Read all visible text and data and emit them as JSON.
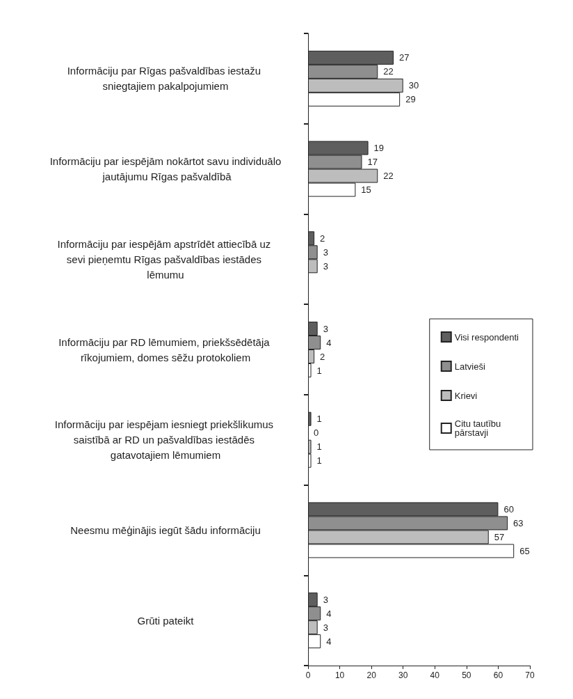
{
  "chart_data": {
    "type": "bar",
    "orientation": "horizontal",
    "categories": [
      "Informāciju par Rīgas pašvaldības iestažu sniegtajiem pakalpojumiem",
      "Informāciju par iespējām nokārtot savu individuālo jautājumu Rīgas pašvaldībā",
      "Informāciju par iespējām apstrīdēt attiecībā uz sevi pieņemtu Rīgas pašvaldības iestādes lēmumu",
      "Informāciju par RD lēmumiem, priekšsēdētāja rīkojumiem, domes sēžu protokoliem",
      "Informāciju par iespējam iesniegt priekšlikumus saistībā ar RD un pašvaldības iestādēs gatavotajiem lēmumiem",
      "Neesmu mēģinājis iegūt šādu informāciju",
      "Grūti pateikt"
    ],
    "series": [
      {
        "name": "Visi respondenti",
        "color": "#5e5e5e",
        "values": [
          27,
          19,
          2,
          3,
          1,
          60,
          3
        ]
      },
      {
        "name": "Latvieši",
        "color": "#8f8f8f",
        "values": [
          22,
          17,
          3,
          4,
          0,
          63,
          4
        ]
      },
      {
        "name": "Krievi",
        "color": "#bdbdbd",
        "values": [
          30,
          22,
          3,
          2,
          1,
          57,
          3
        ]
      },
      {
        "name": "Citu tautību pārstavji",
        "color": "#ffffff",
        "values": [
          29,
          15,
          null,
          1,
          1,
          65,
          4
        ]
      }
    ],
    "xlim": [
      0,
      70
    ],
    "xticks": [
      0,
      10,
      20,
      30,
      40,
      50,
      60,
      70
    ],
    "data_labels": true,
    "grid": false,
    "legend": "right"
  }
}
